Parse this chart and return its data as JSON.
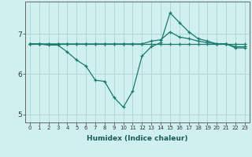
{
  "xlabel": "Humidex (Indice chaleur)",
  "bg_color": "#cff0ee",
  "grid_color": "#b0d8d4",
  "line_color": "#1a7a6e",
  "x": [
    0,
    1,
    2,
    3,
    4,
    5,
    6,
    7,
    8,
    9,
    10,
    11,
    12,
    13,
    14,
    15,
    16,
    17,
    18,
    19,
    20,
    21,
    22,
    23
  ],
  "line1": [
    6.75,
    6.75,
    6.75,
    6.75,
    6.75,
    6.75,
    6.75,
    6.75,
    6.75,
    6.75,
    6.75,
    6.75,
    6.75,
    6.75,
    6.75,
    6.75,
    6.75,
    6.75,
    6.75,
    6.75,
    6.75,
    6.75,
    6.75,
    6.75
  ],
  "line2": [
    6.75,
    6.75,
    6.72,
    6.72,
    6.55,
    6.35,
    6.2,
    5.85,
    5.82,
    5.42,
    5.18,
    5.58,
    6.45,
    6.68,
    6.78,
    7.52,
    7.28,
    7.05,
    6.88,
    6.82,
    6.75,
    6.75,
    6.65,
    6.65
  ],
  "line3": [
    6.75,
    6.75,
    6.75,
    6.75,
    6.75,
    6.75,
    6.75,
    6.75,
    6.75,
    6.75,
    6.75,
    6.75,
    6.75,
    6.82,
    6.85,
    7.05,
    6.92,
    6.88,
    6.82,
    6.78,
    6.75,
    6.75,
    6.68,
    6.68
  ],
  "ylim": [
    4.8,
    7.8
  ],
  "yticks": [
    5,
    6,
    7
  ],
  "xticks": [
    0,
    1,
    2,
    3,
    4,
    5,
    6,
    7,
    8,
    9,
    10,
    11,
    12,
    13,
    14,
    15,
    16,
    17,
    18,
    19,
    20,
    21,
    22,
    23
  ]
}
